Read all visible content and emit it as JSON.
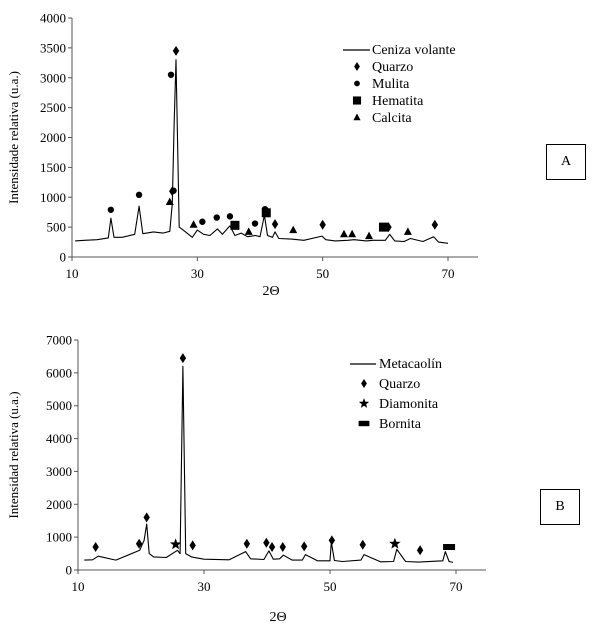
{
  "chart_data": [
    {
      "type": "line",
      "panel_label": "A",
      "xlabel": "2Θ",
      "ylabel": "Intensidade relativa (u.a.)",
      "xlim": [
        10,
        70
      ],
      "ylim": [
        0,
        4000
      ],
      "x_ticks": [
        10,
        30,
        50,
        70
      ],
      "y_ticks": [
        0,
        500,
        1000,
        1500,
        2000,
        2500,
        3000,
        3500,
        4000
      ],
      "legend_position": "top-right",
      "series": [
        {
          "name": "Ceniza volante",
          "x": [
            10.5,
            12,
            14,
            15.8,
            16.2,
            16.7,
            18,
            20,
            20.7,
            21.3,
            23,
            24.5,
            25.6,
            26.0,
            26.3,
            26.6,
            27.1,
            28,
            29.2,
            30,
            31,
            32,
            33.2,
            34,
            35.2,
            36,
            37,
            38,
            39.3,
            40,
            40.7,
            41.2,
            42,
            42.4,
            43,
            45,
            47,
            49.9,
            50.5,
            52,
            54,
            55,
            57,
            58,
            60,
            60.7,
            61.5,
            63,
            64,
            66,
            67.7,
            68.5,
            70
          ],
          "y": [
            270,
            280,
            290,
            320,
            650,
            330,
            330,
            380,
            850,
            390,
            420,
            400,
            430,
            900,
            2200,
            3300,
            500,
            430,
            330,
            450,
            380,
            360,
            470,
            380,
            520,
            360,
            400,
            340,
            360,
            340,
            700,
            360,
            330,
            420,
            310,
            300,
            280,
            350,
            290,
            270,
            280,
            290,
            270,
            280,
            280,
            380,
            270,
            260,
            310,
            260,
            340,
            250,
            230
          ]
        }
      ],
      "markers": [
        {
          "name": "Quarzo",
          "symbol": "diamond",
          "points": [
            [
              26.6,
              3450
            ],
            [
              26.0,
              1100
            ],
            [
              42.4,
              550
            ],
            [
              50.0,
              540
            ],
            [
              60.5,
              500
            ],
            [
              67.9,
              540
            ]
          ]
        },
        {
          "name": "Mulita",
          "symbol": "circle",
          "points": [
            [
              16.2,
              790
            ],
            [
              20.7,
              1040
            ],
            [
              25.8,
              3050
            ],
            [
              26.2,
              1110
            ],
            [
              30.8,
              590
            ],
            [
              33.1,
              660
            ],
            [
              35.2,
              680
            ],
            [
              39.2,
              560
            ],
            [
              40.8,
              800
            ]
          ]
        },
        {
          "name": "Hematita",
          "symbol": "square",
          "points": [
            [
              36.0,
              530
            ],
            [
              41.0,
              740
            ],
            [
              59.7,
              500
            ]
          ]
        },
        {
          "name": "Calcita",
          "symbol": "triangle",
          "points": [
            [
              25.6,
              920
            ],
            [
              29.4,
              540
            ],
            [
              38.2,
              420
            ],
            [
              45.3,
              450
            ],
            [
              53.4,
              380
            ],
            [
              54.7,
              380
            ],
            [
              57.4,
              350
            ],
            [
              63.6,
              420
            ]
          ]
        }
      ]
    },
    {
      "type": "line",
      "panel_label": "B",
      "xlabel": "2Θ",
      "ylabel": "Intensidad relativa (u.a.)",
      "xlim": [
        10,
        70
      ],
      "ylim": [
        0,
        7000
      ],
      "x_ticks": [
        10,
        30,
        50,
        70
      ],
      "y_ticks": [
        0,
        1000,
        2000,
        3000,
        4000,
        5000,
        6000,
        7000
      ],
      "legend_position": "top-right",
      "series": [
        {
          "name": "Metacaolín",
          "x": [
            11,
            12.3,
            13.2,
            16,
            19.8,
            20.5,
            20.9,
            21.3,
            22,
            24,
            25.8,
            26.2,
            26.65,
            27.1,
            28,
            30,
            34,
            36.6,
            37.4,
            39.5,
            40.3,
            41,
            42,
            42.6,
            44,
            45.6,
            46.1,
            48,
            50,
            50.2,
            50.7,
            52,
            54.9,
            55.4,
            58,
            60.1,
            60.6,
            62,
            64,
            67.9,
            68.3,
            68.9,
            69.5
          ],
          "y": [
            300,
            310,
            420,
            300,
            600,
            900,
            1400,
            500,
            400,
            380,
            600,
            500,
            6200,
            500,
            400,
            330,
            310,
            560,
            340,
            320,
            580,
            330,
            340,
            450,
            300,
            300,
            470,
            280,
            280,
            850,
            290,
            260,
            300,
            470,
            250,
            260,
            630,
            260,
            240,
            280,
            560,
            260,
            230
          ]
        }
      ],
      "markers": [
        {
          "name": "Quarzo",
          "symbol": "diamond",
          "points": [
            [
              26.65,
              6450
            ],
            [
              20.9,
              1600
            ],
            [
              12.8,
              700
            ],
            [
              19.7,
              800
            ],
            [
              28.2,
              750
            ],
            [
              36.8,
              800
            ],
            [
              39.9,
              830
            ],
            [
              40.8,
              700
            ],
            [
              42.5,
              700
            ],
            [
              45.9,
              720
            ],
            [
              50.3,
              900
            ],
            [
              55.2,
              770
            ],
            [
              64.3,
              600
            ]
          ]
        },
        {
          "name": "Diamonita",
          "symbol": "star",
          "points": [
            [
              25.5,
              780
            ],
            [
              60.3,
              800
            ]
          ]
        },
        {
          "name": "Bornita",
          "symbol": "rect",
          "points": [
            [
              68.9,
              700
            ]
          ]
        }
      ]
    }
  ]
}
